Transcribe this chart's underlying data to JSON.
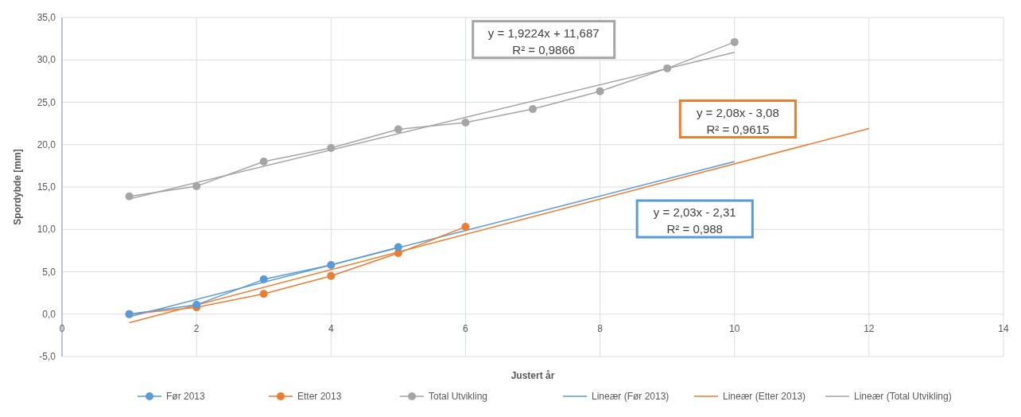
{
  "chart_data": {
    "type": "line",
    "xlabel": "Justert år",
    "ylabel": "Spordybde [mm]",
    "xlim": [
      0,
      14
    ],
    "xticks": [
      0,
      2,
      4,
      6,
      8,
      10,
      12,
      14
    ],
    "ylim": [
      -5,
      35
    ],
    "yticks": [
      {
        "value": -5,
        "label": "-5,0"
      },
      {
        "value": 0,
        "label": "0,0"
      },
      {
        "value": 5,
        "label": "5,0"
      },
      {
        "value": 10,
        "label": "10,0"
      },
      {
        "value": 15,
        "label": "15,0"
      },
      {
        "value": 20,
        "label": "20,0"
      },
      {
        "value": 25,
        "label": "25,0"
      },
      {
        "value": 30,
        "label": "30,0"
      },
      {
        "value": 35,
        "label": "35,0"
      }
    ],
    "grid": true,
    "legend": "bottom",
    "marker": "circle",
    "series": [
      {
        "name": "Før 2013",
        "color": "#5b9bd5",
        "x": [
          1,
          2,
          3,
          4,
          5
        ],
        "values": [
          0.0,
          1.1,
          4.1,
          5.8,
          7.9
        ]
      },
      {
        "name": "Etter 2013",
        "color": "#ed7d31",
        "x": [
          1,
          2,
          3,
          4,
          5,
          6
        ],
        "values": [
          0.0,
          0.8,
          2.4,
          4.5,
          7.2,
          10.3
        ]
      },
      {
        "name": "Total Utvikling",
        "color": "#a5a5a5",
        "x": [
          1,
          2,
          3,
          4,
          5,
          6,
          7,
          8,
          9,
          10
        ],
        "values": [
          13.9,
          15.1,
          18.0,
          19.6,
          21.8,
          22.6,
          24.2,
          26.3,
          29.0,
          32.1
        ]
      },
      {
        "name": "Lineær (Før 2013)",
        "color": "#5b9bd5",
        "marker": "none",
        "x": [
          1,
          10
        ],
        "values": [
          -0.3,
          18.0
        ]
      },
      {
        "name": "Lineær (Etter 2013)",
        "color": "#ed7d31",
        "marker": "none",
        "x": [
          1,
          12
        ],
        "values": [
          -1.0,
          21.9
        ]
      },
      {
        "name": "Lineær (Total Utvikling)",
        "color": "#a5a5a5",
        "marker": "none",
        "x": [
          1,
          10
        ],
        "values": [
          13.6,
          30.9
        ]
      }
    ],
    "annotations": [
      "y = 2,03x - 2,31\nR² = 0,988",
      "y = 2,08x - 3,08\nR² = 0,9615",
      "y = 1,9224x + 11,687\nR² = 0,9866"
    ]
  }
}
